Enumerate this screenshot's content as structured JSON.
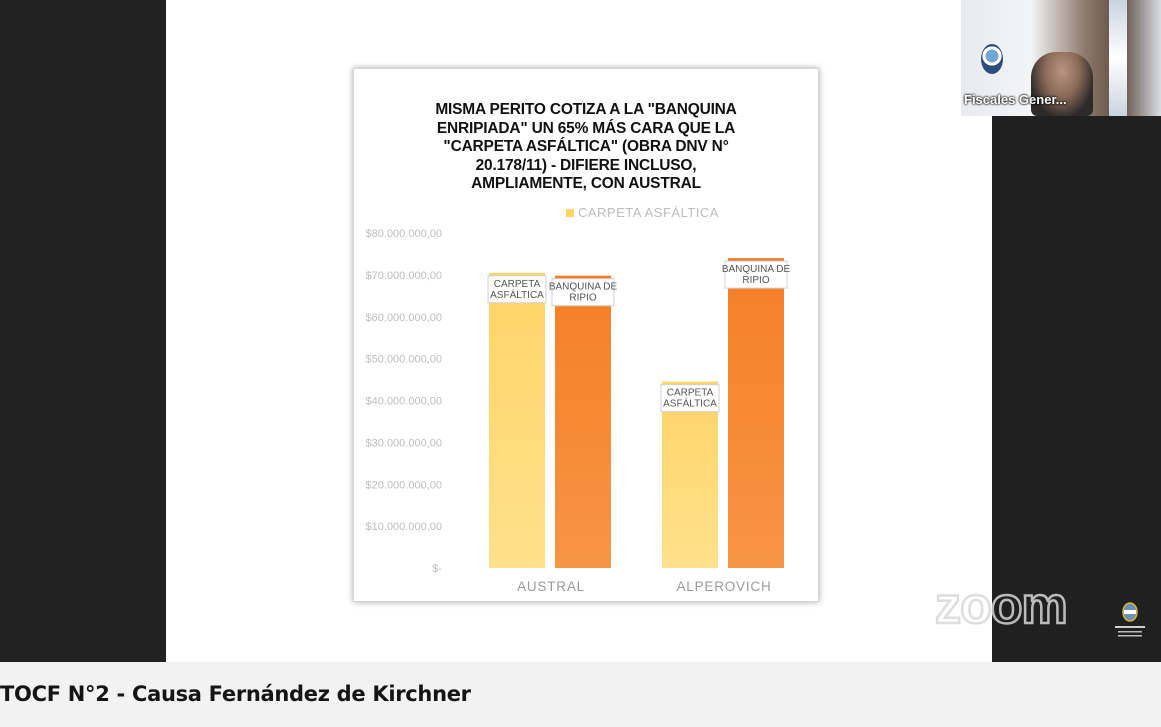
{
  "caption": "TOCF N°2 - Causa Fernández de Kirchner",
  "video_tile": {
    "name": "Fiscales Gener..."
  },
  "watermark": "zoom",
  "chart_data": {
    "type": "bar",
    "title_lines": [
      "MISMA PERITO COTIZA A LA \"BANQUINA",
      "ENRIPIADA\" UN 65% MÁS CARA QUE LA",
      "\"CARPETA ASFÁLTICA\" (OBRA DNV N°",
      "20.178/11) - DIFIERE INCLUSO,",
      "AMPLIAMENTE, CON AUSTRAL"
    ],
    "legend": "CARPETA ASFÁLTICA",
    "categories": [
      "AUSTRAL",
      "ALPEROVICH"
    ],
    "series": [
      {
        "name": "CARPETA ASFÁLTICA",
        "values": [
          70500000,
          44500000
        ],
        "color": "#ffd466",
        "label_lines": [
          "CARPETA",
          "ASFÁLTICA"
        ]
      },
      {
        "name": "BANQUINA DE RIPIO",
        "values": [
          69800000,
          74000000
        ],
        "color": "#f57e24",
        "label_lines": [
          "BANQUINA DE",
          "RIPIO"
        ]
      }
    ],
    "yticks": [
      {
        "value": 0,
        "label": "$-"
      },
      {
        "value": 10000000,
        "label": "$10.000.000,00"
      },
      {
        "value": 20000000,
        "label": "$20.000.000,00"
      },
      {
        "value": 30000000,
        "label": "$30.000.000,00"
      },
      {
        "value": 40000000,
        "label": "$40.000.000,00"
      },
      {
        "value": 50000000,
        "label": "$50.000.000,00"
      },
      {
        "value": 60000000,
        "label": "$60.000.000,00"
      },
      {
        "value": 70000000,
        "label": "$70.000.000,00"
      },
      {
        "value": 80000000,
        "label": "$80.000.000,00"
      }
    ],
    "ylim": [
      0,
      80000000
    ],
    "grid": false
  }
}
